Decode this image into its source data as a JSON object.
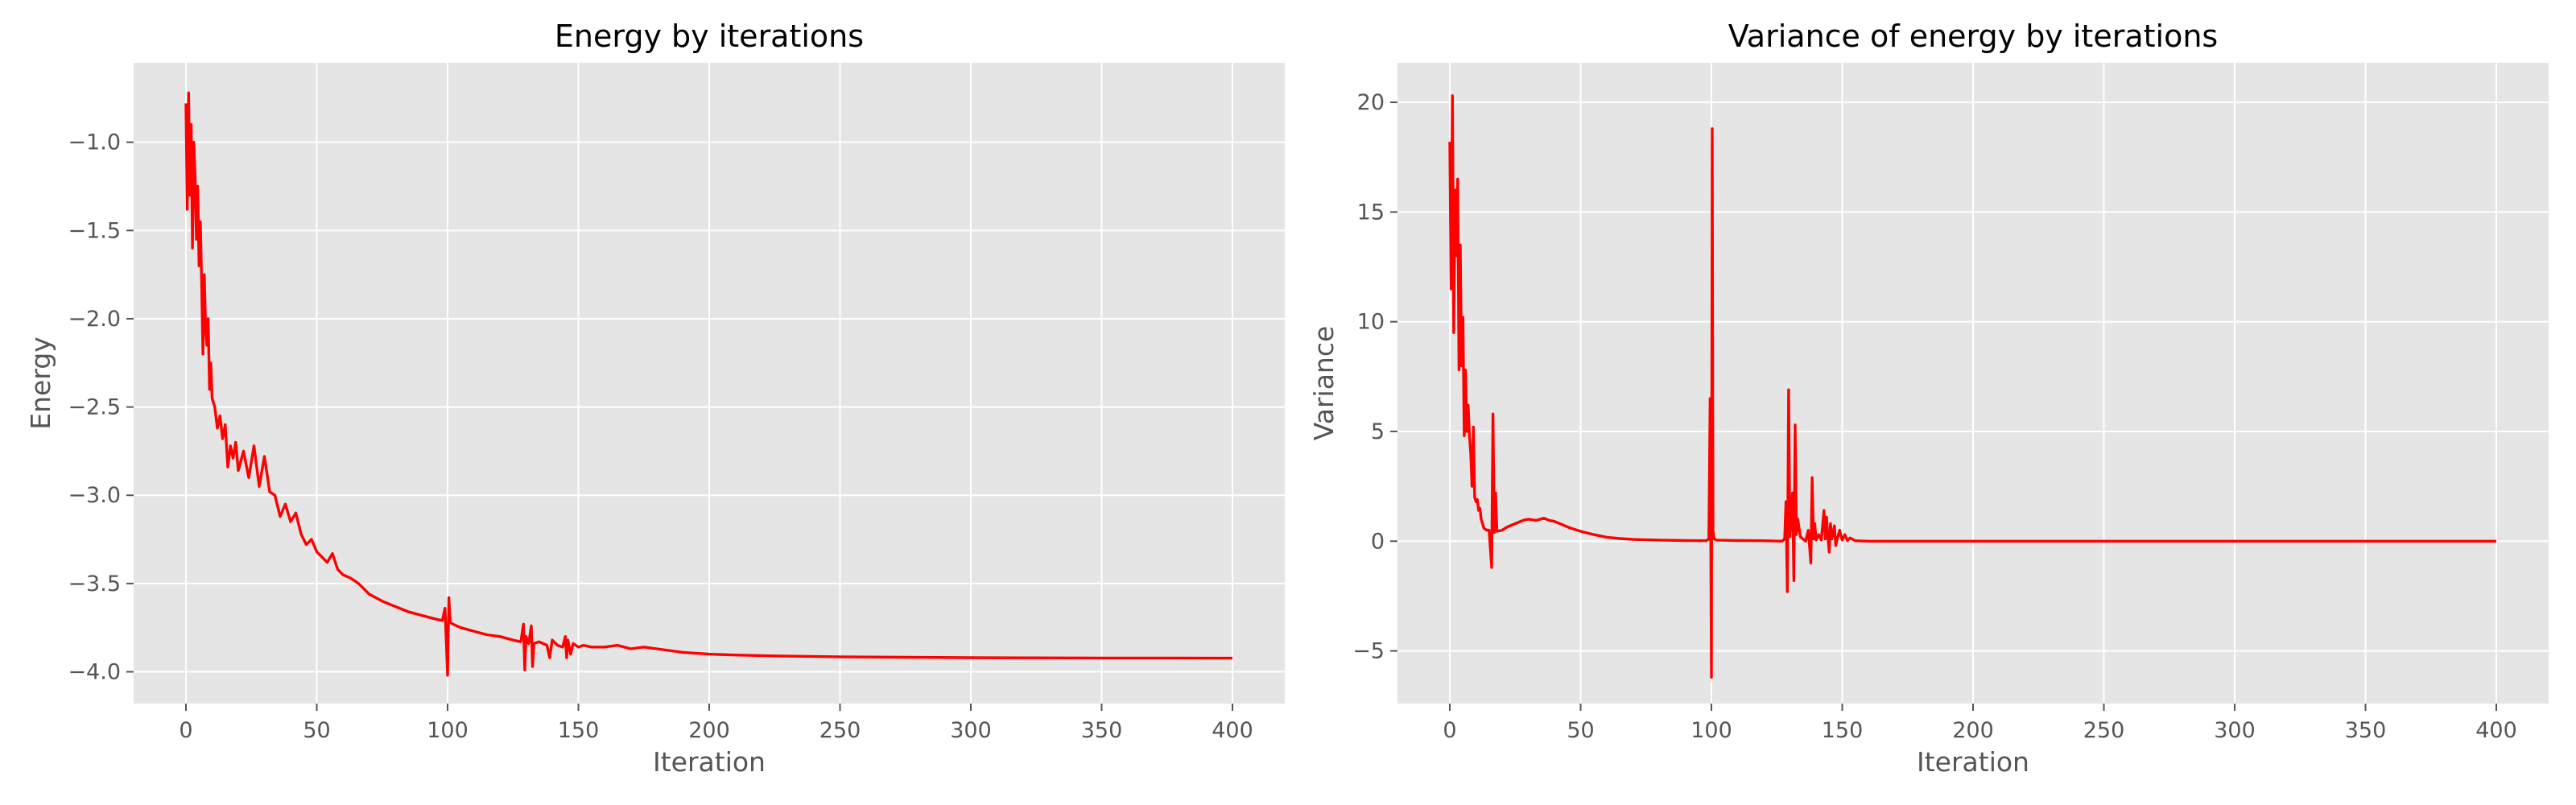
{
  "chart_data": [
    {
      "type": "line",
      "title": "Energy by iterations",
      "xlabel": "Iteration",
      "ylabel": "Energy",
      "xlim": [
        -20,
        420
      ],
      "ylim": [
        -4.18,
        -0.55
      ],
      "xticks": [
        0,
        50,
        100,
        150,
        200,
        250,
        300,
        350,
        400
      ],
      "yticks": [
        -4.0,
        -3.5,
        -3.0,
        -2.5,
        -2.0,
        -1.5,
        -1.0
      ],
      "xtick_labels": [
        "0",
        "50",
        "100",
        "150",
        "200",
        "250",
        "300",
        "350",
        "400"
      ],
      "ytick_labels": [
        "−4.0",
        "−3.5",
        "−3.0",
        "−2.5",
        "−2.0",
        "−1.5",
        "−1.0"
      ],
      "grid": true,
      "background": "#e5e5e5",
      "line_color": "#ff0000",
      "series": [
        {
          "x": [
            0,
            0.5,
            1,
            1.5,
            2,
            2.5,
            3,
            3.5,
            4,
            4.5,
            5,
            5.5,
            6,
            6.5,
            7,
            7.5,
            8,
            8.5,
            9,
            9.5,
            10,
            11,
            12,
            13,
            14,
            15,
            16,
            17,
            18,
            19,
            20,
            22,
            24,
            26,
            28,
            30,
            32,
            34,
            36,
            38,
            40,
            42,
            44,
            46,
            48,
            50,
            52,
            54,
            56,
            58,
            60,
            63,
            66,
            70,
            75,
            80,
            85,
            90,
            95,
            98,
            99,
            100,
            100.5,
            101,
            102,
            105,
            110,
            115,
            120,
            125,
            128,
            129,
            129.5,
            130,
            131,
            132,
            132.5,
            133,
            135,
            138,
            139,
            140,
            142,
            144,
            145,
            145.5,
            146,
            147,
            148,
            150,
            152,
            155,
            160,
            165,
            170,
            175,
            180,
            190,
            200,
            210,
            225,
            250,
            275,
            300,
            325,
            350,
            375,
            400
          ],
          "y": [
            -0.78,
            -1.38,
            -0.72,
            -1.3,
            -0.9,
            -1.6,
            -1.0,
            -1.2,
            -1.55,
            -1.25,
            -1.7,
            -1.45,
            -1.8,
            -2.2,
            -1.75,
            -2.05,
            -2.15,
            -2.0,
            -2.4,
            -2.25,
            -2.45,
            -2.5,
            -2.62,
            -2.55,
            -2.68,
            -2.6,
            -2.84,
            -2.72,
            -2.79,
            -2.7,
            -2.86,
            -2.75,
            -2.9,
            -2.72,
            -2.95,
            -2.78,
            -2.98,
            -3.0,
            -3.12,
            -3.05,
            -3.15,
            -3.1,
            -3.22,
            -3.28,
            -3.25,
            -3.32,
            -3.35,
            -3.38,
            -3.33,
            -3.42,
            -3.45,
            -3.47,
            -3.5,
            -3.56,
            -3.6,
            -3.63,
            -3.66,
            -3.68,
            -3.7,
            -3.71,
            -3.64,
            -4.02,
            -3.58,
            -3.72,
            -3.73,
            -3.75,
            -3.77,
            -3.79,
            -3.8,
            -3.82,
            -3.83,
            -3.73,
            -3.99,
            -3.8,
            -3.84,
            -3.74,
            -3.97,
            -3.84,
            -3.83,
            -3.85,
            -3.92,
            -3.82,
            -3.85,
            -3.86,
            -3.8,
            -3.92,
            -3.82,
            -3.9,
            -3.84,
            -3.86,
            -3.85,
            -3.86,
            -3.86,
            -3.85,
            -3.87,
            -3.86,
            -3.87,
            -3.89,
            -3.9,
            -3.905,
            -3.91,
            -3.915,
            -3.918,
            -3.92,
            -3.921,
            -3.922,
            -3.922,
            -3.923
          ]
        }
      ]
    },
    {
      "type": "line",
      "title": "Variance of energy by iterations",
      "xlabel": "Iteration",
      "ylabel": "Variance",
      "xlim": [
        -20,
        420
      ],
      "ylim": [
        -7.4,
        21.8
      ],
      "xticks": [
        0,
        50,
        100,
        150,
        200,
        250,
        300,
        350,
        400
      ],
      "yticks": [
        -5,
        0,
        5,
        10,
        15,
        20
      ],
      "xtick_labels": [
        "0",
        "50",
        "100",
        "150",
        "200",
        "250",
        "300",
        "350",
        "400"
      ],
      "ytick_labels": [
        "−5",
        "0",
        "5",
        "10",
        "15",
        "20"
      ],
      "grid": true,
      "background": "#e5e5e5",
      "line_color": "#ff0000",
      "series": [
        {
          "x": [
            0,
            0.5,
            1,
            1.5,
            2,
            2.5,
            3,
            3.5,
            4,
            4.5,
            5,
            5.5,
            6,
            6.5,
            7,
            7.5,
            8,
            8.5,
            9,
            9.5,
            10,
            10.5,
            11,
            11.5,
            12,
            13,
            14,
            15,
            16,
            16.5,
            17,
            17.5,
            18,
            20,
            22,
            25,
            28,
            30,
            33,
            36,
            38,
            40,
            43,
            46,
            50,
            55,
            60,
            65,
            70,
            80,
            90,
            98,
            99,
            99.5,
            100,
            100.3,
            100.6,
            101,
            102,
            110,
            120,
            127,
            128,
            128.5,
            129,
            129.5,
            130,
            131,
            131.5,
            132,
            132.5,
            133,
            134,
            136,
            137,
            138,
            138.5,
            139,
            139.5,
            140,
            141,
            142,
            143,
            143.5,
            144,
            144.5,
            145,
            145.5,
            146,
            147,
            147.5,
            148,
            149,
            150,
            151,
            152,
            153,
            155,
            160,
            180,
            200,
            250,
            300,
            350,
            400
          ],
          "y": [
            18.2,
            11.5,
            20.3,
            9.5,
            16.0,
            13.0,
            16.5,
            7.8,
            13.5,
            8.0,
            10.2,
            4.8,
            7.8,
            5.0,
            6.2,
            4.8,
            4.0,
            2.5,
            5.2,
            2.0,
            1.8,
            1.9,
            1.4,
            1.5,
            1.0,
            0.6,
            0.5,
            0.5,
            -1.2,
            5.8,
            0.4,
            2.2,
            0.45,
            0.5,
            0.65,
            0.8,
            0.95,
            1.0,
            0.95,
            1.05,
            0.95,
            0.9,
            0.75,
            0.6,
            0.45,
            0.3,
            0.18,
            0.12,
            0.08,
            0.05,
            0.03,
            0.02,
            0.1,
            6.5,
            -6.2,
            18.8,
            0.5,
            0.1,
            0.05,
            0.03,
            0.02,
            0.0,
            0.1,
            1.8,
            -2.3,
            6.9,
            0.2,
            2.2,
            -1.8,
            5.3,
            0.3,
            1.0,
            0.2,
            0.0,
            0.5,
            -1.0,
            2.9,
            0.1,
            0.8,
            0.05,
            0.3,
            0.05,
            1.4,
            0.1,
            1.1,
            0.2,
            -0.5,
            0.8,
            0.1,
            0.7,
            -0.2,
            0.05,
            0.5,
            0.05,
            0.3,
            0.02,
            0.15,
            0.02,
            0.0,
            0.0,
            0.0,
            0.0,
            0.0,
            0.0,
            0.0
          ]
        }
      ]
    }
  ]
}
